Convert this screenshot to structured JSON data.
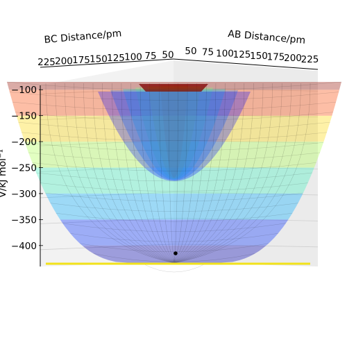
{
  "chart_data": {
    "type": "surface3d",
    "title": "",
    "xlabel": "AB Distance/pm",
    "ylabel": "BC Distance/pm",
    "zlabel": "V/kJ mol⁻¹",
    "x_ticks": [
      "50",
      "75",
      "100",
      "125",
      "150",
      "175",
      "200",
      "225"
    ],
    "y_ticks": [
      "50",
      "75",
      "100",
      "125",
      "150",
      "175",
      "200",
      "225"
    ],
    "z_ticks": [
      "−100",
      "−150",
      "−200",
      "−250",
      "−300",
      "−350",
      "−400"
    ],
    "xlim": [
      50,
      225
    ],
    "ylim": [
      50,
      225
    ],
    "zlim": [
      -435,
      -85
    ],
    "colormap": "jet",
    "surface_alpha": 0.35,
    "contour_levels": [
      -400,
      -350,
      -300,
      -250,
      -200,
      -150,
      -100
    ],
    "grid": true,
    "marker": {
      "x": 74,
      "y": 74,
      "z": -430,
      "color": "#000000"
    },
    "reaction_path_color": "#f2e21a",
    "series": [
      {
        "surface": "potential energy surface",
        "minimum_energy": -432,
        "asymptote_energy": -100
      }
    ]
  }
}
